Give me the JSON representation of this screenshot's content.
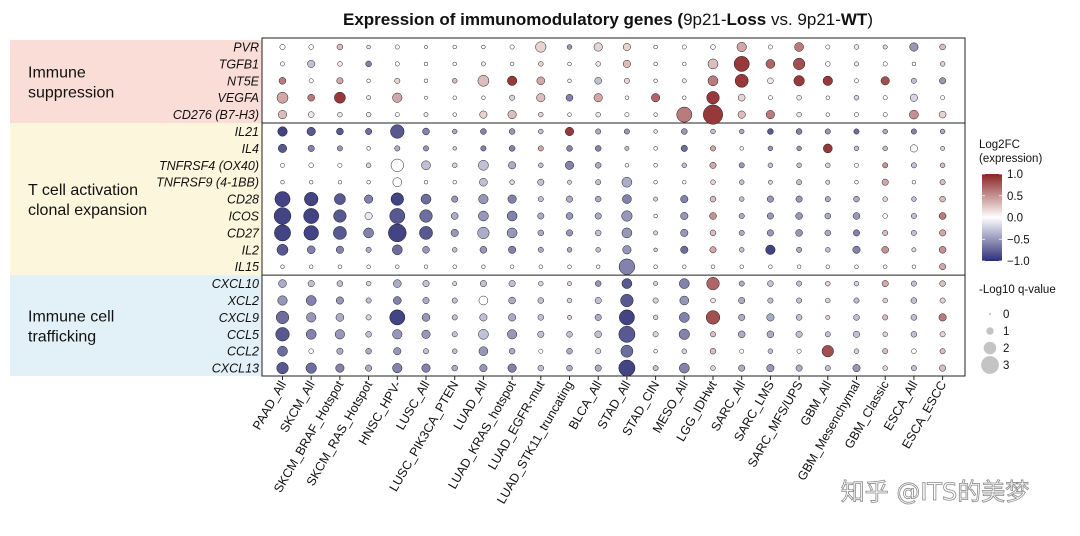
{
  "chart_data": {
    "type": "dotplot",
    "title_parts": [
      "Expression of immunomodulatory genes (",
      "9p21-",
      "Loss",
      " vs. 9p21-",
      "WT",
      ")"
    ],
    "groups": [
      {
        "label": "Immune\nsuppression",
        "color": "#f9ddd6",
        "genes": [
          "PVR",
          "TGFB1",
          "NT5E",
          "VEGFA",
          "CD276 (B7-H3)"
        ]
      },
      {
        "label": "T cell activation\nclonal expansion",
        "color": "#fbf6dc",
        "genes": [
          "IL21",
          "IL4",
          "TNFRSF4 (OX40)",
          "TNFRSF9 (4-1BB)",
          "CD28",
          "ICOS",
          "CD27",
          "IL2",
          "IL15"
        ]
      },
      {
        "label": "Immune cell\ntrafficking",
        "color": "#e2f0f7",
        "genes": [
          "CXCL10",
          "XCL2",
          "CXCL9",
          "CCL5",
          "CCL2",
          "CXCL13"
        ]
      }
    ],
    "cohorts": [
      "PAAD_All",
      "SKCM_All",
      "SKCM_BRAF_Hotspot",
      "SKCM_RAS_Hotspot",
      "HNSC_HPV-",
      "LUSC_All",
      "LUSC_PIK3CA_PTEN",
      "LUAD_All",
      "LUAD_KRAS_hotspot",
      "LUAD_EGFR-mut",
      "LUAD_STK11_truncating",
      "BLCA_All",
      "STAD_All",
      "STAD_CIN",
      "MESO_All",
      "LGG_IDHwt",
      "SARC_All",
      "SARC_LMS",
      "SARC_MFS/UPS",
      "GBM_All",
      "GBM_Mesenchymal",
      "GBM_Classic",
      "ESCA_All",
      "ESCA_ESCC"
    ],
    "log2fc": [
      [
        0,
        0,
        0.3,
        0.1,
        0,
        0,
        0,
        0,
        0,
        0.2,
        -0.5,
        0.2,
        0.2,
        0,
        0,
        0,
        0.4,
        0,
        0.6,
        0,
        0.1,
        0.2,
        -0.5,
        0.3
      ],
      [
        0,
        -0.3,
        0.1,
        -0.6,
        0,
        0,
        0,
        0.1,
        0,
        0.2,
        0,
        0.1,
        0.3,
        0,
        0,
        0.3,
        0.9,
        0.7,
        0.8,
        0,
        0.1,
        0,
        0,
        0.2
      ],
      [
        0.6,
        0,
        0.4,
        0,
        0.2,
        0,
        0.3,
        0.3,
        0.9,
        0.4,
        0,
        -0.3,
        0.2,
        0,
        0.1,
        0.6,
        0.9,
        0.1,
        0.9,
        0.9,
        0,
        0.8,
        -0.3,
        -0.5
      ],
      [
        0.4,
        0.6,
        0.9,
        0.1,
        0.4,
        0,
        0,
        0,
        -0.2,
        0.3,
        -0.6,
        0.4,
        0,
        0.7,
        0,
        0.9,
        0.2,
        0,
        0.1,
        0,
        -0.2,
        0,
        -0.2,
        0
      ],
      [
        0.3,
        0.1,
        0.1,
        0.1,
        0,
        0.1,
        0,
        0.2,
        0.3,
        0.2,
        0,
        0.1,
        0,
        0,
        0.6,
        0.9,
        0.3,
        0.6,
        0.1,
        0,
        0,
        0,
        0.5,
        0.2
      ],
      [
        -0.9,
        -0.8,
        -0.8,
        -0.7,
        -0.8,
        -0.6,
        -0.4,
        -0.6,
        -0.5,
        -0.3,
        0.9,
        -0.4,
        -0.5,
        -0.1,
        -0.5,
        -0.3,
        -0.4,
        -0.8,
        -0.6,
        -0.5,
        -0.7,
        -0.4,
        -0.6,
        -0.4
      ],
      [
        -0.8,
        -0.6,
        -0.5,
        0,
        -0.4,
        -0.5,
        -0.2,
        -0.6,
        -0.6,
        0.4,
        -0.6,
        -0.6,
        -0.3,
        0,
        -0.7,
        0.4,
        0,
        -0.5,
        -0.5,
        0.9,
        -0.3,
        -0.3,
        0,
        -0.2
      ],
      [
        0,
        0,
        0,
        -0.2,
        0,
        -0.3,
        -0.2,
        -0.3,
        -0.4,
        -0.3,
        -0.6,
        -0.4,
        0,
        0,
        -0.3,
        0.4,
        -0.5,
        -0.3,
        -0.3,
        -0.2,
        0,
        0.5,
        -0.3,
        0.3
      ],
      [
        0,
        0,
        0,
        0,
        0,
        0,
        0,
        -0.3,
        -0.2,
        -0.3,
        -0.2,
        -0.3,
        -0.4,
        0,
        0,
        0.2,
        -0.3,
        -0.2,
        -0.3,
        -0.2,
        0,
        0.4,
        0,
        0.3
      ],
      [
        -0.9,
        -0.9,
        -0.8,
        -0.6,
        -0.9,
        -0.7,
        -0.5,
        -0.5,
        -0.6,
        -0.3,
        -0.4,
        -0.4,
        -0.6,
        -0.2,
        -0.6,
        0.3,
        -0.3,
        -0.5,
        -0.5,
        -0.4,
        -0.4,
        0.2,
        -0.3,
        0.3
      ],
      [
        -0.9,
        -0.9,
        -0.8,
        -0.1,
        -0.8,
        -0.7,
        -0.4,
        -0.5,
        -0.6,
        -0.4,
        -0.5,
        -0.4,
        -0.5,
        0,
        -0.5,
        0.5,
        -0.4,
        -0.5,
        -0.5,
        -0.4,
        -0.5,
        0,
        -0.3,
        0.6
      ],
      [
        -0.9,
        -0.9,
        -0.8,
        -0.6,
        -0.9,
        -0.8,
        -0.5,
        -0.4,
        -0.5,
        -0.4,
        -0.5,
        -0.3,
        -0.5,
        -0.2,
        -0.5,
        0.3,
        -0.4,
        -0.5,
        -0.5,
        -0.4,
        -0.6,
        0.3,
        -0.3,
        0.4
      ],
      [
        -0.8,
        -0.6,
        -0.6,
        -0.4,
        -0.7,
        -0.5,
        -0.3,
        -0.5,
        -0.6,
        -0.4,
        -0.4,
        -0.3,
        -0.5,
        -0.2,
        -0.7,
        0.4,
        -0.3,
        -0.9,
        -0.4,
        -0.3,
        -0.6,
        0.5,
        -0.2,
        0.5
      ],
      [
        0,
        0,
        0,
        0,
        0,
        0,
        0,
        0,
        0,
        0,
        0,
        0,
        -0.6,
        0,
        0,
        0,
        0,
        0,
        0,
        0,
        0,
        0,
        0,
        0.4
      ],
      [
        -0.4,
        -0.3,
        -0.3,
        -0.2,
        -0.4,
        -0.3,
        -0.2,
        -0.3,
        -0.3,
        -0.2,
        0.2,
        -0.5,
        -0.8,
        -0.2,
        -0.6,
        0.7,
        -0.4,
        -0.3,
        -0.3,
        0.2,
        -0.2,
        0.4,
        -0.3,
        0.3
      ],
      [
        -0.5,
        -0.6,
        -0.5,
        -0.3,
        -0.6,
        -0.4,
        -0.3,
        0,
        -0.4,
        -0.3,
        -0.2,
        -0.3,
        -0.8,
        -0.2,
        -0.5,
        0.1,
        -0.4,
        -0.3,
        -0.3,
        -0.2,
        -0.3,
        0.2,
        -0.3,
        0.2
      ],
      [
        -0.7,
        -0.5,
        -0.4,
        -0.2,
        -0.9,
        -0.5,
        -0.3,
        -0.3,
        -0.4,
        -0.3,
        0.2,
        -0.4,
        -0.9,
        -0.2,
        -0.6,
        0.8,
        -0.4,
        -0.4,
        -0.3,
        0.2,
        -0.3,
        0.3,
        -0.3,
        0.6
      ],
      [
        -0.8,
        -0.6,
        -0.5,
        -0.3,
        -0.5,
        -0.5,
        -0.3,
        -0.3,
        -0.5,
        -0.3,
        -0.3,
        -0.3,
        -0.8,
        -0.2,
        -0.6,
        0.3,
        -0.4,
        -0.4,
        -0.3,
        -0.3,
        -0.3,
        0.2,
        -0.3,
        0.2
      ],
      [
        -0.7,
        0,
        -0.4,
        -0.4,
        -0.5,
        -0.3,
        -0.3,
        -0.5,
        -0.4,
        0,
        -0.4,
        -0.2,
        -0.7,
        0,
        -0.2,
        0.3,
        0,
        -0.3,
        0,
        0.8,
        -0.2,
        0.3,
        0,
        0.3
      ],
      [
        -0.8,
        -0.7,
        -0.6,
        -0.4,
        -0.6,
        -0.6,
        -0.4,
        -0.5,
        -0.6,
        -0.3,
        -0.4,
        -0.4,
        -0.9,
        -0.3,
        -0.6,
        0.2,
        -0.4,
        -0.5,
        -0.4,
        -0.3,
        -0.5,
        0.2,
        -0.3,
        0.3
      ]
    ],
    "neglog10q": [
      [
        0.6,
        0.5,
        0.7,
        0.3,
        0.4,
        0.2,
        0.3,
        0.3,
        0.4,
        1.6,
        0.5,
        1.2,
        1.0,
        0.3,
        0.4,
        0.5,
        1.4,
        0.4,
        1.3,
        0.4,
        0.5,
        0.4,
        1.2,
        0.7
      ],
      [
        0.4,
        1.0,
        0.5,
        0.7,
        0.4,
        0.3,
        0.3,
        0.4,
        0.3,
        0.5,
        0.3,
        0.5,
        1.0,
        0.3,
        0.3,
        1.5,
        2.5,
        1.3,
        1.8,
        0.5,
        0.4,
        0.4,
        0.3,
        0.5
      ],
      [
        0.9,
        0.4,
        0.8,
        0.3,
        0.6,
        0.3,
        0.5,
        1.7,
        1.4,
        1.1,
        0.3,
        0.9,
        0.6,
        0.3,
        0.4,
        1.5,
        2.1,
        0.7,
        1.6,
        1.4,
        0.4,
        1.2,
        0.6,
        0.8
      ],
      [
        1.7,
        0.9,
        1.7,
        0.4,
        1.4,
        0.2,
        0.3,
        0.3,
        0.6,
        1.2,
        0.9,
        1.2,
        0.3,
        1.2,
        0.3,
        2.0,
        0.9,
        0.4,
        0.5,
        0.3,
        0.5,
        0.4,
        1.0,
        0.4
      ],
      [
        1.2,
        0.7,
        0.5,
        0.5,
        0.4,
        0.4,
        0.3,
        1.0,
        1.2,
        0.5,
        0.3,
        0.5,
        0.4,
        0.3,
        2.5,
        3.3,
        1.0,
        1.2,
        0.5,
        0.3,
        0.4,
        0.4,
        1.3,
        0.9
      ],
      [
        1.4,
        1.2,
        0.9,
        0.8,
        2.2,
        0.9,
        0.5,
        0.7,
        0.7,
        0.5,
        1.2,
        0.6,
        0.6,
        0.3,
        0.7,
        0.5,
        0.5,
        0.7,
        0.7,
        0.6,
        0.6,
        0.5,
        0.6,
        0.5
      ],
      [
        1.2,
        0.8,
        0.6,
        0.3,
        0.6,
        0.6,
        0.3,
        0.6,
        0.7,
        0.6,
        0.7,
        0.7,
        0.4,
        0.3,
        0.8,
        0.6,
        0.3,
        0.5,
        0.5,
        1.3,
        0.5,
        0.5,
        1.0,
        0.4
      ],
      [
        0.4,
        0.5,
        0.4,
        0.5,
        2.0,
        1.3,
        0.5,
        1.5,
        1.0,
        0.5,
        1.2,
        0.7,
        0.3,
        0.3,
        0.5,
        0.8,
        0.6,
        0.5,
        0.5,
        0.5,
        0.4,
        0.6,
        0.6,
        0.5
      ],
      [
        0.3,
        0.3,
        0.3,
        0.3,
        1.3,
        0.3,
        0.3,
        1.1,
        0.5,
        0.8,
        0.4,
        0.6,
        1.5,
        0.3,
        0.3,
        0.5,
        0.5,
        0.4,
        0.6,
        0.4,
        0.3,
        0.8,
        0.3,
        0.6
      ],
      [
        2.5,
        2.2,
        1.7,
        1.2,
        2.0,
        1.5,
        0.8,
        1.4,
        1.2,
        0.6,
        0.8,
        0.7,
        1.3,
        0.4,
        1.0,
        0.7,
        0.5,
        0.8,
        0.8,
        0.6,
        0.7,
        0.5,
        0.5,
        0.7
      ],
      [
        2.8,
        2.5,
        2.0,
        1.0,
        2.5,
        2.0,
        0.9,
        1.5,
        1.5,
        0.8,
        0.9,
        0.8,
        1.6,
        0.3,
        1.0,
        0.9,
        0.6,
        0.8,
        0.9,
        0.7,
        0.9,
        0.5,
        0.6,
        0.9
      ],
      [
        2.7,
        2.4,
        2.1,
        1.5,
        3.0,
        2.1,
        1.0,
        1.8,
        1.5,
        0.7,
        0.8,
        0.7,
        1.5,
        0.4,
        1.0,
        0.7,
        0.6,
        0.8,
        0.9,
        0.7,
        0.8,
        0.6,
        0.6,
        0.8
      ],
      [
        1.7,
        1.1,
        1.0,
        0.6,
        1.5,
        0.9,
        0.5,
        0.9,
        1.0,
        0.6,
        0.5,
        0.5,
        1.2,
        0.3,
        1.0,
        0.8,
        0.5,
        1.4,
        0.6,
        0.5,
        1.0,
        0.9,
        0.4,
        0.9
      ],
      [
        0.3,
        0.3,
        0.3,
        0.3,
        0.3,
        0.3,
        0.3,
        0.3,
        0.3,
        0.3,
        0.3,
        0.3,
        2.6,
        0.3,
        0.3,
        0.3,
        0.3,
        0.3,
        0.3,
        0.3,
        0.3,
        0.3,
        0.3,
        0.8
      ],
      [
        1.1,
        0.8,
        0.7,
        0.5,
        1.1,
        0.8,
        0.4,
        0.8,
        0.8,
        0.5,
        0.4,
        0.7,
        1.5,
        0.4,
        1.5,
        2.0,
        0.6,
        0.7,
        0.6,
        0.5,
        0.5,
        0.8,
        0.6,
        0.7
      ],
      [
        1.4,
        1.5,
        1.0,
        0.6,
        1.1,
        0.8,
        0.6,
        1.3,
        0.9,
        0.7,
        0.5,
        0.8,
        2.0,
        0.6,
        1.3,
        0.5,
        0.8,
        0.6,
        0.6,
        0.5,
        0.6,
        0.5,
        0.7,
        0.6
      ],
      [
        2.0,
        1.4,
        1.1,
        0.6,
        2.5,
        1.1,
        0.6,
        1.0,
        1.0,
        0.7,
        0.4,
        0.8,
        2.5,
        0.5,
        1.5,
        2.2,
        0.8,
        1.0,
        0.7,
        0.4,
        0.7,
        0.6,
        0.7,
        1.0
      ],
      [
        2.2,
        1.5,
        1.4,
        0.7,
        1.4,
        1.2,
        0.6,
        1.5,
        1.4,
        0.8,
        0.7,
        0.9,
        2.7,
        0.6,
        1.6,
        0.6,
        0.9,
        0.9,
        0.8,
        0.6,
        0.8,
        0.5,
        0.7,
        0.6
      ],
      [
        1.5,
        0.5,
        0.8,
        0.7,
        1.0,
        0.6,
        0.5,
        1.3,
        0.7,
        0.4,
        0.7,
        0.6,
        1.9,
        0.3,
        0.5,
        0.7,
        0.4,
        0.5,
        0.4,
        1.8,
        0.5,
        0.6,
        0.5,
        0.6
      ],
      [
        1.8,
        1.6,
        1.2,
        0.8,
        1.4,
        1.2,
        0.7,
        1.0,
        1.2,
        0.7,
        0.7,
        0.8,
        2.7,
        0.6,
        1.5,
        0.5,
        0.8,
        1.0,
        0.8,
        0.6,
        1.0,
        0.5,
        0.6,
        0.8
      ]
    ],
    "legend_color": {
      "title": "Log2FC\n(expression)",
      "ticks": [
        "1.0",
        "0.5",
        "0.0",
        "−0.5",
        "−1.0"
      ],
      "range": [
        -1,
        1
      ]
    },
    "legend_size": {
      "title": "-Log10 q-value",
      "ticks": [
        "0",
        "1",
        "2",
        "3"
      ],
      "values": [
        0,
        1,
        2,
        3
      ]
    },
    "colors": {
      "high": "#8b2324",
      "mid": "#ffffff",
      "low": "#2e2f75"
    },
    "watermark": "知乎 @ITS的美梦"
  }
}
